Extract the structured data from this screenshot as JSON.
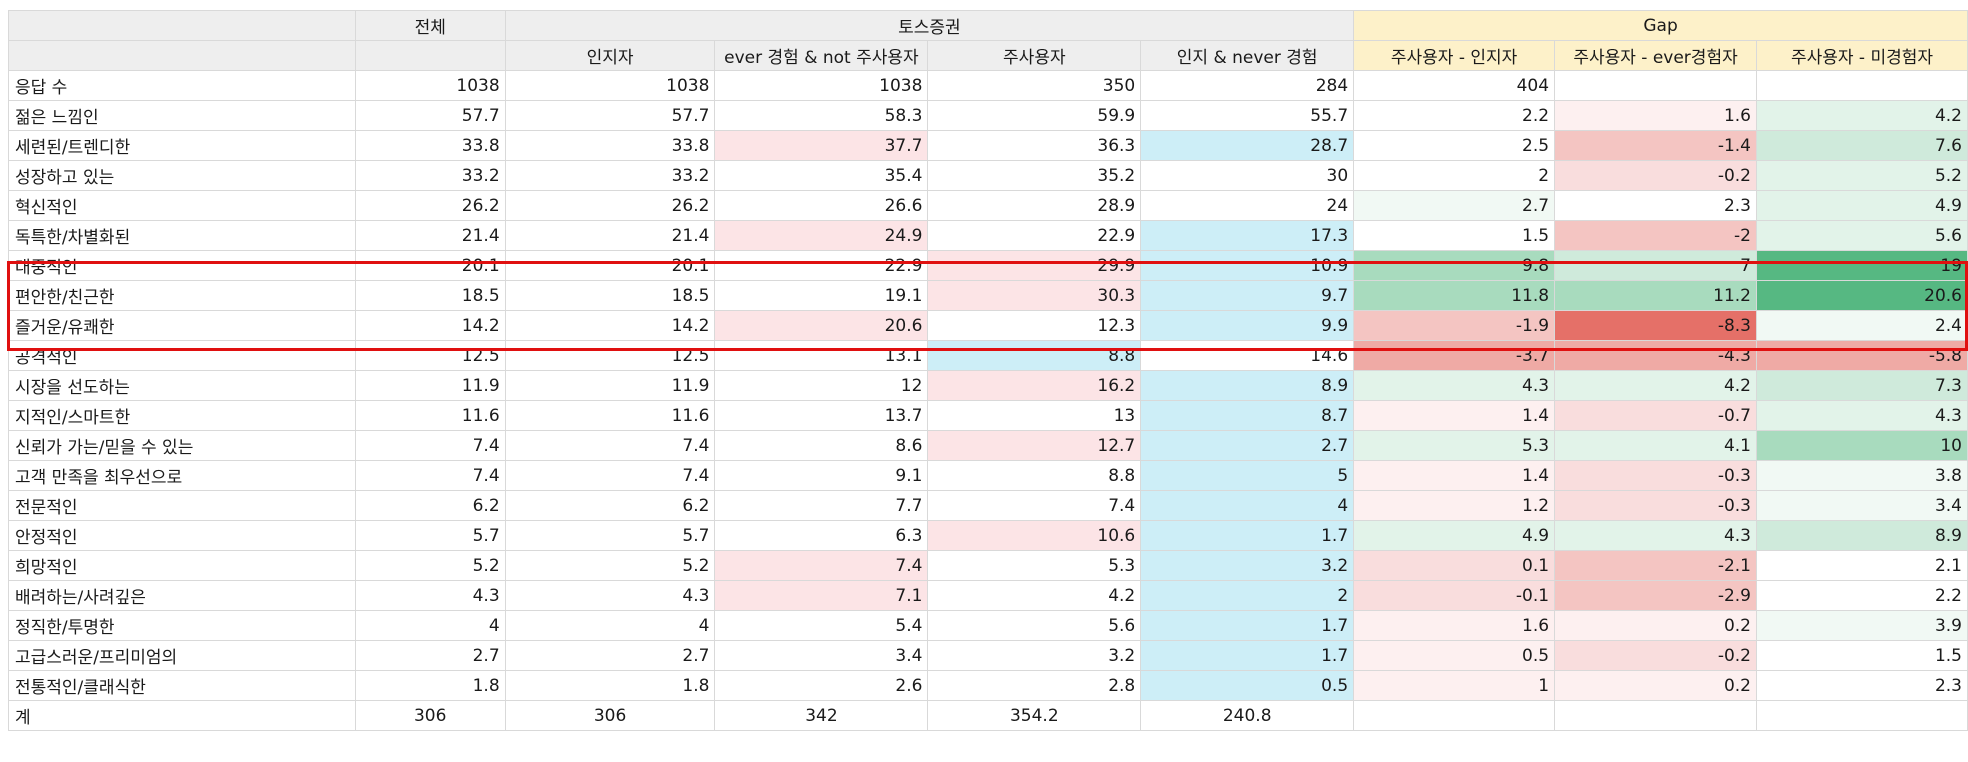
{
  "header": {
    "col_total": "전체",
    "group_toss": "토스증권",
    "group_gap": "Gap",
    "sub_headers": [
      "인지자",
      "ever 경험 & not 주사용자",
      "주사용자",
      "인지 & never 경험",
      "주사용자 - 인지자",
      "주사용자 - ever경험자",
      "주사용자 - 미경험자"
    ]
  },
  "colors": {
    "pink_light": "#fce4e6",
    "blue_light": "#cdeef7",
    "green_scale": [
      "#f1f9f4",
      "#e2f3e9",
      "#cfeadb",
      "#a8dbbe",
      "#56b882"
    ],
    "red_scale": [
      "#fdf0f0",
      "#f9dddd",
      "#f4c5c2",
      "#efaaa5",
      "#e57068"
    ],
    "highlight_border": "#e01010",
    "gap_header": "#fdf1c9"
  },
  "rows": [
    {
      "label": "응답 수",
      "cells": [
        "1038",
        "1038",
        "1038",
        "350",
        "284",
        "404",
        "",
        "",
        ""
      ],
      "bg": [
        "",
        "",
        "",
        "",
        "",
        "",
        "",
        "",
        ""
      ]
    },
    {
      "label": "젊은 느낌인",
      "cells": [
        "57.7",
        "57.7",
        "58.3",
        "59.9",
        "55.7",
        "2.2",
        "1.6",
        "4.2"
      ],
      "bg": [
        "",
        "",
        "",
        "",
        "",
        "",
        "r0",
        "g1"
      ]
    },
    {
      "label": "세련된/트렌디한",
      "cells": [
        "33.8",
        "33.8",
        "37.7",
        "36.3",
        "28.7",
        "2.5",
        "-1.4",
        "7.6"
      ],
      "bg": [
        "",
        "",
        "p",
        "",
        "b",
        "",
        "r2",
        "g2"
      ]
    },
    {
      "label": "성장하고 있는",
      "cells": [
        "33.2",
        "33.2",
        "35.4",
        "35.2",
        "30",
        "2",
        "-0.2",
        "5.2"
      ],
      "bg": [
        "",
        "",
        "",
        "",
        "",
        "",
        "r1",
        "g1"
      ]
    },
    {
      "label": "혁신적인",
      "cells": [
        "26.2",
        "26.2",
        "26.6",
        "28.9",
        "24",
        "2.7",
        "2.3",
        "4.9"
      ],
      "bg": [
        "",
        "",
        "",
        "",
        "",
        "g0",
        "",
        "g1"
      ]
    },
    {
      "label": "독특한/차별화된",
      "cells": [
        "21.4",
        "21.4",
        "24.9",
        "22.9",
        "17.3",
        "1.5",
        "-2",
        "5.6"
      ],
      "bg": [
        "",
        "",
        "p",
        "",
        "b",
        "",
        "r2",
        "g1"
      ]
    },
    {
      "label": "대중적인",
      "cells": [
        "20.1",
        "20.1",
        "22.9",
        "29.9",
        "10.9",
        "9.8",
        "7",
        "19"
      ],
      "bg": [
        "",
        "",
        "",
        "p",
        "b",
        "g3",
        "g2",
        "g4"
      ]
    },
    {
      "label": "편안한/친근한",
      "cells": [
        "18.5",
        "18.5",
        "19.1",
        "30.3",
        "9.7",
        "11.8",
        "11.2",
        "20.6"
      ],
      "bg": [
        "",
        "",
        "",
        "p",
        "b",
        "g3",
        "g3",
        "g4"
      ]
    },
    {
      "label": "즐거운/유쾌한",
      "cells": [
        "14.2",
        "14.2",
        "20.6",
        "12.3",
        "9.9",
        "-1.9",
        "-8.3",
        "2.4"
      ],
      "bg": [
        "",
        "",
        "p",
        "",
        "b",
        "r2",
        "r4",
        "g0"
      ]
    },
    {
      "label": "공격적인",
      "cells": [
        "12.5",
        "12.5",
        "13.1",
        "8.8",
        "14.6",
        "-3.7",
        "-4.3",
        "-5.8"
      ],
      "bg": [
        "",
        "",
        "",
        "b",
        "",
        "r3",
        "r3",
        "r3"
      ]
    },
    {
      "label": "시장을 선도하는",
      "cells": [
        "11.9",
        "11.9",
        "12",
        "16.2",
        "8.9",
        "4.3",
        "4.2",
        "7.3"
      ],
      "bg": [
        "",
        "",
        "",
        "p",
        "b",
        "g1",
        "g1",
        "g2"
      ]
    },
    {
      "label": "지적인/스마트한",
      "cells": [
        "11.6",
        "11.6",
        "13.7",
        "13",
        "8.7",
        "1.4",
        "-0.7",
        "4.3"
      ],
      "bg": [
        "",
        "",
        "",
        "",
        "b",
        "r0",
        "r1",
        "g1"
      ]
    },
    {
      "label": "신뢰가 가는/믿을 수 있는",
      "cells": [
        "7.4",
        "7.4",
        "8.6",
        "12.7",
        "2.7",
        "5.3",
        "4.1",
        "10"
      ],
      "bg": [
        "",
        "",
        "",
        "p",
        "b",
        "g1",
        "g1",
        "g3"
      ]
    },
    {
      "label": "고객 만족을 최우선으로",
      "cells": [
        "7.4",
        "7.4",
        "9.1",
        "8.8",
        "5",
        "1.4",
        "-0.3",
        "3.8"
      ],
      "bg": [
        "",
        "",
        "",
        "",
        "b",
        "r0",
        "r1",
        "g0"
      ]
    },
    {
      "label": "전문적인",
      "cells": [
        "6.2",
        "6.2",
        "7.7",
        "7.4",
        "4",
        "1.2",
        "-0.3",
        "3.4"
      ],
      "bg": [
        "",
        "",
        "",
        "",
        "b",
        "r0",
        "r1",
        "g0"
      ]
    },
    {
      "label": "안정적인",
      "cells": [
        "5.7",
        "5.7",
        "6.3",
        "10.6",
        "1.7",
        "4.9",
        "4.3",
        "8.9"
      ],
      "bg": [
        "",
        "",
        "",
        "p",
        "b",
        "g1",
        "g1",
        "g2"
      ]
    },
    {
      "label": "희망적인",
      "cells": [
        "5.2",
        "5.2",
        "7.4",
        "5.3",
        "3.2",
        "0.1",
        "-2.1",
        "2.1"
      ],
      "bg": [
        "",
        "",
        "p",
        "",
        "b",
        "r1",
        "r2",
        ""
      ]
    },
    {
      "label": "배려하는/사려깊은",
      "cells": [
        "4.3",
        "4.3",
        "7.1",
        "4.2",
        "2",
        "-0.1",
        "-2.9",
        "2.2"
      ],
      "bg": [
        "",
        "",
        "p",
        "",
        "b",
        "r1",
        "r2",
        ""
      ]
    },
    {
      "label": "정직한/투명한",
      "cells": [
        "4",
        "4",
        "5.4",
        "5.6",
        "1.7",
        "1.6",
        "0.2",
        "3.9"
      ],
      "bg": [
        "",
        "",
        "",
        "",
        "b",
        "r0",
        "r0",
        "g0"
      ]
    },
    {
      "label": "고급스러운/프리미엄의",
      "cells": [
        "2.7",
        "2.7",
        "3.4",
        "3.2",
        "1.7",
        "0.5",
        "-0.2",
        "1.5"
      ],
      "bg": [
        "",
        "",
        "",
        "",
        "b",
        "r0",
        "r1",
        ""
      ]
    },
    {
      "label": "전통적인/클래식한",
      "cells": [
        "1.8",
        "1.8",
        "2.6",
        "2.8",
        "0.5",
        "1",
        "0.2",
        "2.3"
      ],
      "bg": [
        "",
        "",
        "",
        "",
        "b",
        "r0",
        "r0",
        ""
      ]
    }
  ],
  "total_row": {
    "label": "계",
    "cells": [
      "306",
      "306",
      "342",
      "354.2",
      "240.8",
      "",
      "",
      ""
    ]
  }
}
